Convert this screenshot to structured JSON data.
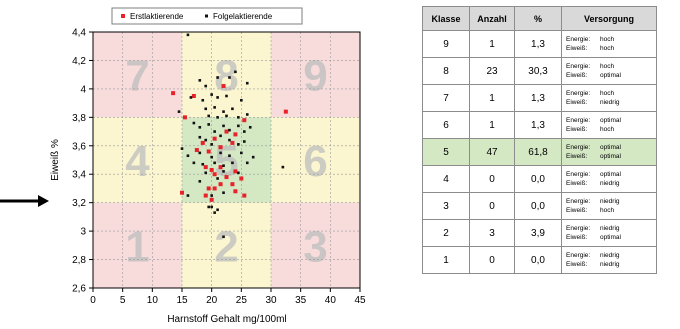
{
  "colors": {
    "erst": "#e8222a",
    "folge": "#111111",
    "zone_low": "#f8dcdc",
    "zone_mid": "#fbf6cf",
    "zone_opt": "#d4e8c4",
    "grid": "#9a9a9a"
  },
  "chart_data": {
    "type": "scatter",
    "title": "",
    "xlabel": "Harnstoff Gehalt mg/100ml",
    "ylabel": "Eiweiß %",
    "xlim": [
      0,
      45
    ],
    "ylim": [
      2.6,
      4.4
    ],
    "x_ticks": [
      "0",
      "5",
      "10",
      "15",
      "20",
      "25",
      "30",
      "35",
      "40",
      "45"
    ],
    "y_ticks": [
      "2,6",
      "2,8",
      "3",
      "3,2",
      "3,4",
      "3,6",
      "3,8",
      "4",
      "4,2",
      "4,4"
    ],
    "legend": {
      "placement": "top",
      "entries": [
        "Erstlaktierende",
        "Folgelaktierende"
      ]
    },
    "zones": {
      "x_bounds": [
        15,
        30
      ],
      "y_bounds": [
        3.2,
        3.8
      ],
      "labels": [
        {
          "label": "7",
          "col": 0,
          "row": 0
        },
        {
          "label": "8",
          "col": 1,
          "row": 0
        },
        {
          "label": "9",
          "col": 2,
          "row": 0
        },
        {
          "label": "4",
          "col": 0,
          "row": 1
        },
        {
          "label": "5",
          "col": 1,
          "row": 1
        },
        {
          "label": "6",
          "col": 2,
          "row": 1
        },
        {
          "label": "1",
          "col": 0,
          "row": 2
        },
        {
          "label": "2",
          "col": 1,
          "row": 2
        },
        {
          "label": "3",
          "col": 2,
          "row": 2
        }
      ]
    },
    "series": [
      {
        "name": "Erstlaktierende",
        "points": [
          [
            13.5,
            3.97
          ],
          [
            15.5,
            3.8
          ],
          [
            17.0,
            3.95
          ],
          [
            22.0,
            4.02
          ],
          [
            18.5,
            3.62
          ],
          [
            19.5,
            3.56
          ],
          [
            20.5,
            3.65
          ],
          [
            21.5,
            3.59
          ],
          [
            22.5,
            3.7
          ],
          [
            23.5,
            3.62
          ],
          [
            25.5,
            3.78
          ],
          [
            24.0,
            3.68
          ],
          [
            17.5,
            3.57
          ],
          [
            19.0,
            3.45
          ],
          [
            20.0,
            3.43
          ],
          [
            20.5,
            3.4
          ],
          [
            21.5,
            3.45
          ],
          [
            22.5,
            3.38
          ],
          [
            24.0,
            3.42
          ],
          [
            25.0,
            3.37
          ],
          [
            23.5,
            3.33
          ],
          [
            19.5,
            3.3
          ],
          [
            20.5,
            3.3
          ],
          [
            21.5,
            3.33
          ],
          [
            15.0,
            3.27
          ],
          [
            19.0,
            3.25
          ],
          [
            20.0,
            3.22
          ],
          [
            24.0,
            3.28
          ],
          [
            25.5,
            3.25
          ],
          [
            32.5,
            3.84
          ]
        ]
      },
      {
        "name": "Folgelaktierende",
        "points": [
          [
            16.0,
            4.38
          ],
          [
            18.0,
            4.06
          ],
          [
            19.0,
            4.02
          ],
          [
            21.0,
            4.08
          ],
          [
            23.0,
            4.08
          ],
          [
            24.0,
            4.12
          ],
          [
            26.0,
            4.04
          ],
          [
            16.5,
            3.94
          ],
          [
            18.5,
            3.92
          ],
          [
            20.0,
            3.96
          ],
          [
            21.0,
            3.94
          ],
          [
            22.5,
            3.95
          ],
          [
            25.0,
            3.92
          ],
          [
            19.0,
            3.86
          ],
          [
            20.5,
            3.87
          ],
          [
            22.0,
            3.84
          ],
          [
            23.5,
            3.86
          ],
          [
            19.5,
            3.81
          ],
          [
            21.0,
            3.8
          ],
          [
            22.5,
            3.81
          ],
          [
            24.5,
            3.8
          ],
          [
            26.0,
            3.82
          ],
          [
            17.0,
            3.76
          ],
          [
            18.0,
            3.73
          ],
          [
            19.5,
            3.75
          ],
          [
            20.5,
            3.7
          ],
          [
            22.0,
            3.74
          ],
          [
            23.0,
            3.71
          ],
          [
            24.5,
            3.74
          ],
          [
            25.5,
            3.7
          ],
          [
            26.5,
            3.73
          ],
          [
            18.0,
            3.66
          ],
          [
            19.0,
            3.64
          ],
          [
            20.0,
            3.61
          ],
          [
            21.5,
            3.67
          ],
          [
            23.0,
            3.64
          ],
          [
            24.5,
            3.61
          ],
          [
            25.5,
            3.63
          ],
          [
            16.0,
            3.53
          ],
          [
            18.0,
            3.55
          ],
          [
            20.0,
            3.52
          ],
          [
            21.5,
            3.55
          ],
          [
            23.0,
            3.53
          ],
          [
            25.0,
            3.55
          ],
          [
            27.0,
            3.52
          ],
          [
            17.0,
            3.48
          ],
          [
            18.5,
            3.47
          ],
          [
            20.5,
            3.48
          ],
          [
            22.0,
            3.46
          ],
          [
            23.5,
            3.48
          ],
          [
            26.0,
            3.48
          ],
          [
            19.0,
            3.41
          ],
          [
            22.0,
            3.42
          ],
          [
            24.5,
            3.41
          ],
          [
            21.0,
            3.37
          ],
          [
            18.0,
            3.35
          ],
          [
            20.0,
            3.25
          ],
          [
            22.0,
            3.27
          ],
          [
            16.0,
            3.25
          ],
          [
            20.0,
            3.17
          ],
          [
            19.5,
            3.17
          ],
          [
            21.0,
            3.15
          ],
          [
            20.5,
            3.13
          ],
          [
            22.0,
            2.96
          ],
          [
            32.0,
            3.45
          ],
          [
            14.5,
            3.84
          ],
          [
            15.0,
            3.58
          ]
        ]
      }
    ]
  },
  "table": {
    "headers": [
      "Klasse",
      "Anzahl",
      "%",
      "Versorgung"
    ],
    "energie_label": "Energie:",
    "eiweiss_label": "Eiweiß:",
    "rows": [
      {
        "klasse": "9",
        "anzahl": "1",
        "pct": "1,3",
        "energie": "hoch",
        "eiweiss": "hoch"
      },
      {
        "klasse": "8",
        "anzahl": "23",
        "pct": "30,3",
        "energie": "hoch",
        "eiweiss": "optimal"
      },
      {
        "klasse": "7",
        "anzahl": "1",
        "pct": "1,3",
        "energie": "hoch",
        "eiweiss": "niedrig"
      },
      {
        "klasse": "6",
        "anzahl": "1",
        "pct": "1,3",
        "energie": "optimal",
        "eiweiss": "hoch"
      },
      {
        "klasse": "5",
        "anzahl": "47",
        "pct": "61,8",
        "energie": "optimal",
        "eiweiss": "optimal"
      },
      {
        "klasse": "4",
        "anzahl": "0",
        "pct": "0,0",
        "energie": "optimal",
        "eiweiss": "niedrig"
      },
      {
        "klasse": "3",
        "anzahl": "0",
        "pct": "0,0",
        "energie": "niedrig",
        "eiweiss": "hoch"
      },
      {
        "klasse": "2",
        "anzahl": "3",
        "pct": "3,9",
        "energie": "niedrig",
        "eiweiss": "optimal"
      },
      {
        "klasse": "1",
        "anzahl": "0",
        "pct": "0,0",
        "energie": "niedrig",
        "eiweiss": "niedrig"
      }
    ]
  }
}
